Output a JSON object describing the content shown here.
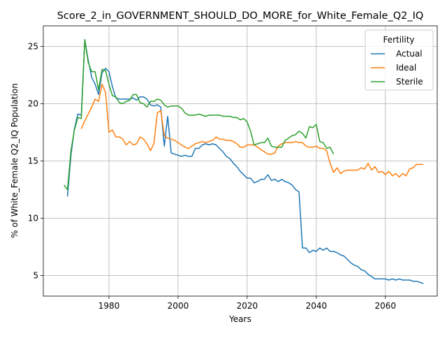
{
  "chart_data": {
    "type": "line",
    "title": "Score_2_in_GOVERNMENT_SHOULD_DO_MORE_for_White_Female_Q2_IQ",
    "xlabel": "Years",
    "ylabel": "% of White_Female Q2_IQ Population",
    "xlim": [
      1961,
      2075
    ],
    "ylim": [
      3.2,
      26.8
    ],
    "xticks": [
      1980,
      2000,
      2020,
      2040,
      2060
    ],
    "yticks": [
      5,
      10,
      15,
      20,
      25
    ],
    "grid": true,
    "legend": {
      "title": "Fertility",
      "placement": "top-right"
    },
    "series": [
      {
        "name": "Actual",
        "color": "#1f77b4",
        "points": [
          [
            1968,
            11.9
          ],
          [
            1969,
            15.5
          ],
          [
            1970,
            17.8
          ],
          [
            1971,
            19.1
          ],
          [
            1972,
            19.0
          ],
          [
            1973,
            25.6
          ],
          [
            1974,
            23.8
          ],
          [
            1975,
            22.3
          ],
          [
            1976,
            21.7
          ],
          [
            1977,
            20.8
          ],
          [
            1978,
            22.7
          ],
          [
            1979,
            23.1
          ],
          [
            1980,
            22.8
          ],
          [
            1981,
            21.5
          ],
          [
            1982,
            20.5
          ],
          [
            1983,
            20.4
          ],
          [
            1984,
            20.4
          ],
          [
            1985,
            20.4
          ],
          [
            1986,
            20.4
          ],
          [
            1987,
            20.5
          ],
          [
            1988,
            20.3
          ],
          [
            1989,
            20.6
          ],
          [
            1990,
            20.6
          ],
          [
            1991,
            20.4
          ],
          [
            1992,
            19.9
          ],
          [
            1993,
            19.8
          ],
          [
            1994,
            19.9
          ],
          [
            1995,
            19.7
          ],
          [
            1996,
            16.3
          ],
          [
            1997,
            18.9
          ],
          [
            1998,
            15.7
          ],
          [
            1999,
            15.6
          ],
          [
            2000,
            15.5
          ],
          [
            2001,
            15.4
          ],
          [
            2002,
            15.5
          ],
          [
            2003,
            15.4
          ],
          [
            2004,
            15.4
          ],
          [
            2005,
            16.1
          ],
          [
            2006,
            16.1
          ],
          [
            2007,
            16.4
          ],
          [
            2008,
            16.5
          ],
          [
            2009,
            16.4
          ],
          [
            2010,
            16.5
          ],
          [
            2011,
            16.4
          ],
          [
            2012,
            16.1
          ],
          [
            2013,
            15.8
          ],
          [
            2014,
            15.4
          ],
          [
            2015,
            15.2
          ],
          [
            2016,
            14.8
          ],
          [
            2017,
            14.5
          ],
          [
            2018,
            14.1
          ],
          [
            2019,
            13.8
          ],
          [
            2020,
            13.5
          ],
          [
            2021,
            13.5
          ],
          [
            2022,
            13.1
          ],
          [
            2023,
            13.2
          ],
          [
            2024,
            13.4
          ],
          [
            2025,
            13.4
          ],
          [
            2026,
            13.8
          ],
          [
            2027,
            13.3
          ],
          [
            2028,
            13.4
          ],
          [
            2029,
            13.2
          ],
          [
            2030,
            13.4
          ],
          [
            2031,
            13.2
          ],
          [
            2032,
            13.1
          ],
          [
            2033,
            12.9
          ],
          [
            2034,
            12.5
          ],
          [
            2035,
            12.3
          ],
          [
            2036,
            7.4
          ],
          [
            2037,
            7.4
          ],
          [
            2038,
            7.0
          ],
          [
            2039,
            7.2
          ],
          [
            2040,
            7.1
          ],
          [
            2041,
            7.4
          ],
          [
            2042,
            7.2
          ],
          [
            2043,
            7.4
          ],
          [
            2044,
            7.1
          ],
          [
            2045,
            7.1
          ],
          [
            2046,
            7.0
          ],
          [
            2047,
            6.8
          ],
          [
            2048,
            6.7
          ],
          [
            2049,
            6.4
          ],
          [
            2050,
            6.1
          ],
          [
            2051,
            5.9
          ],
          [
            2052,
            5.8
          ],
          [
            2053,
            5.5
          ],
          [
            2054,
            5.4
          ],
          [
            2055,
            5.1
          ],
          [
            2056,
            4.9
          ],
          [
            2057,
            4.7
          ],
          [
            2058,
            4.7
          ],
          [
            2059,
            4.7
          ],
          [
            2060,
            4.7
          ],
          [
            2061,
            4.6
          ],
          [
            2062,
            4.7
          ],
          [
            2063,
            4.6
          ],
          [
            2064,
            4.7
          ],
          [
            2065,
            4.6
          ],
          [
            2066,
            4.6
          ],
          [
            2067,
            4.6
          ],
          [
            2068,
            4.5
          ],
          [
            2069,
            4.5
          ],
          [
            2070,
            4.4
          ],
          [
            2071,
            4.3
          ]
        ]
      },
      {
        "name": "Ideal",
        "color": "#ff7f0e",
        "points": [
          [
            1972,
            17.8
          ],
          [
            1973,
            18.5
          ],
          [
            1974,
            19.1
          ],
          [
            1975,
            19.7
          ],
          [
            1976,
            20.4
          ],
          [
            1977,
            20.2
          ],
          [
            1978,
            21.7
          ],
          [
            1979,
            21.0
          ],
          [
            1980,
            17.5
          ],
          [
            1981,
            17.7
          ],
          [
            1982,
            17.1
          ],
          [
            1983,
            17.1
          ],
          [
            1984,
            16.9
          ],
          [
            1985,
            16.4
          ],
          [
            1986,
            16.7
          ],
          [
            1987,
            16.4
          ],
          [
            1988,
            16.5
          ],
          [
            1989,
            17.1
          ],
          [
            1990,
            16.9
          ],
          [
            1991,
            16.5
          ],
          [
            1992,
            15.9
          ],
          [
            1993,
            16.5
          ],
          [
            1994,
            19.2
          ],
          [
            1995,
            19.4
          ],
          [
            1996,
            17.2
          ],
          [
            1997,
            17.0
          ],
          [
            1998,
            16.9
          ],
          [
            1999,
            16.8
          ],
          [
            2000,
            16.6
          ],
          [
            2001,
            16.4
          ],
          [
            2002,
            16.2
          ],
          [
            2003,
            16.1
          ],
          [
            2004,
            16.3
          ],
          [
            2005,
            16.5
          ],
          [
            2006,
            16.6
          ],
          [
            2007,
            16.7
          ],
          [
            2008,
            16.6
          ],
          [
            2009,
            16.7
          ],
          [
            2010,
            16.8
          ],
          [
            2011,
            17.1
          ],
          [
            2012,
            16.9
          ],
          [
            2013,
            16.9
          ],
          [
            2014,
            16.8
          ],
          [
            2015,
            16.8
          ],
          [
            2016,
            16.7
          ],
          [
            2017,
            16.5
          ],
          [
            2018,
            16.2
          ],
          [
            2019,
            16.2
          ],
          [
            2020,
            16.4
          ],
          [
            2021,
            16.4
          ],
          [
            2022,
            16.4
          ],
          [
            2023,
            16.2
          ],
          [
            2024,
            16.0
          ],
          [
            2025,
            15.8
          ],
          [
            2026,
            15.6
          ],
          [
            2027,
            15.6
          ],
          [
            2028,
            15.7
          ],
          [
            2029,
            16.3
          ],
          [
            2030,
            16.5
          ],
          [
            2031,
            16.6
          ],
          [
            2032,
            16.6
          ],
          [
            2033,
            16.6
          ],
          [
            2034,
            16.7
          ],
          [
            2035,
            16.6
          ],
          [
            2036,
            16.6
          ],
          [
            2037,
            16.3
          ],
          [
            2038,
            16.2
          ],
          [
            2039,
            16.2
          ],
          [
            2040,
            16.3
          ],
          [
            2041,
            16.1
          ],
          [
            2042,
            16.1
          ],
          [
            2043,
            15.9
          ],
          [
            2044,
            14.8
          ],
          [
            2045,
            14.0
          ],
          [
            2046,
            14.4
          ],
          [
            2047,
            13.9
          ],
          [
            2048,
            14.1
          ],
          [
            2049,
            14.2
          ],
          [
            2050,
            14.2
          ],
          [
            2051,
            14.2
          ],
          [
            2052,
            14.2
          ],
          [
            2053,
            14.4
          ],
          [
            2054,
            14.3
          ],
          [
            2055,
            14.8
          ],
          [
            2056,
            14.2
          ],
          [
            2057,
            14.5
          ],
          [
            2058,
            14.0
          ],
          [
            2059,
            14.1
          ],
          [
            2060,
            13.8
          ],
          [
            2061,
            14.1
          ],
          [
            2062,
            13.7
          ],
          [
            2063,
            13.9
          ],
          [
            2064,
            13.6
          ],
          [
            2065,
            13.9
          ],
          [
            2066,
            13.7
          ],
          [
            2067,
            14.3
          ],
          [
            2068,
            14.4
          ],
          [
            2069,
            14.7
          ],
          [
            2070,
            14.7
          ],
          [
            2071,
            14.7
          ]
        ]
      },
      {
        "name": "Sterile",
        "color": "#2ca02c",
        "points": [
          [
            1967,
            12.9
          ],
          [
            1968,
            12.5
          ],
          [
            1969,
            15.9
          ],
          [
            1970,
            17.7
          ],
          [
            1971,
            18.8
          ],
          [
            1972,
            18.7
          ],
          [
            1973,
            25.6
          ],
          [
            1974,
            23.6
          ],
          [
            1975,
            22.8
          ],
          [
            1976,
            22.8
          ],
          [
            1977,
            21.2
          ],
          [
            1978,
            23.0
          ],
          [
            1979,
            22.9
          ],
          [
            1980,
            21.7
          ],
          [
            1981,
            20.7
          ],
          [
            1982,
            20.6
          ],
          [
            1983,
            20.1
          ],
          [
            1984,
            20.0
          ],
          [
            1985,
            20.2
          ],
          [
            1986,
            20.3
          ],
          [
            1987,
            20.8
          ],
          [
            1988,
            20.8
          ],
          [
            1989,
            20.1
          ],
          [
            1990,
            20.0
          ],
          [
            1991,
            19.7
          ],
          [
            1992,
            20.2
          ],
          [
            1993,
            20.2
          ],
          [
            1994,
            20.4
          ],
          [
            1995,
            20.3
          ],
          [
            1996,
            19.9
          ],
          [
            1997,
            19.7
          ],
          [
            1998,
            19.8
          ],
          [
            1999,
            19.8
          ],
          [
            2000,
            19.8
          ],
          [
            2001,
            19.6
          ],
          [
            2002,
            19.2
          ],
          [
            2003,
            19.0
          ],
          [
            2004,
            19.0
          ],
          [
            2005,
            19.0
          ],
          [
            2006,
            19.1
          ],
          [
            2007,
            19.0
          ],
          [
            2008,
            18.9
          ],
          [
            2009,
            19.0
          ],
          [
            2010,
            19.0
          ],
          [
            2011,
            19.0
          ],
          [
            2012,
            19.0
          ],
          [
            2013,
            18.9
          ],
          [
            2014,
            18.9
          ],
          [
            2015,
            18.9
          ],
          [
            2016,
            18.8
          ],
          [
            2017,
            18.8
          ],
          [
            2018,
            18.6
          ],
          [
            2019,
            18.7
          ],
          [
            2020,
            18.4
          ],
          [
            2021,
            17.6
          ],
          [
            2022,
            16.4
          ],
          [
            2023,
            16.5
          ],
          [
            2024,
            16.6
          ],
          [
            2025,
            16.6
          ],
          [
            2026,
            17.0
          ],
          [
            2027,
            16.3
          ],
          [
            2028,
            16.2
          ],
          [
            2029,
            16.2
          ],
          [
            2030,
            16.2
          ],
          [
            2031,
            16.8
          ],
          [
            2032,
            17.0
          ],
          [
            2033,
            17.2
          ],
          [
            2034,
            17.3
          ],
          [
            2035,
            17.6
          ],
          [
            2036,
            17.4
          ],
          [
            2037,
            17.0
          ],
          [
            2038,
            18.0
          ],
          [
            2039,
            17.9
          ],
          [
            2040,
            18.2
          ],
          [
            2041,
            16.7
          ],
          [
            2042,
            16.6
          ],
          [
            2043,
            16.1
          ],
          [
            2044,
            16.2
          ],
          [
            2045,
            15.6
          ]
        ]
      }
    ]
  }
}
